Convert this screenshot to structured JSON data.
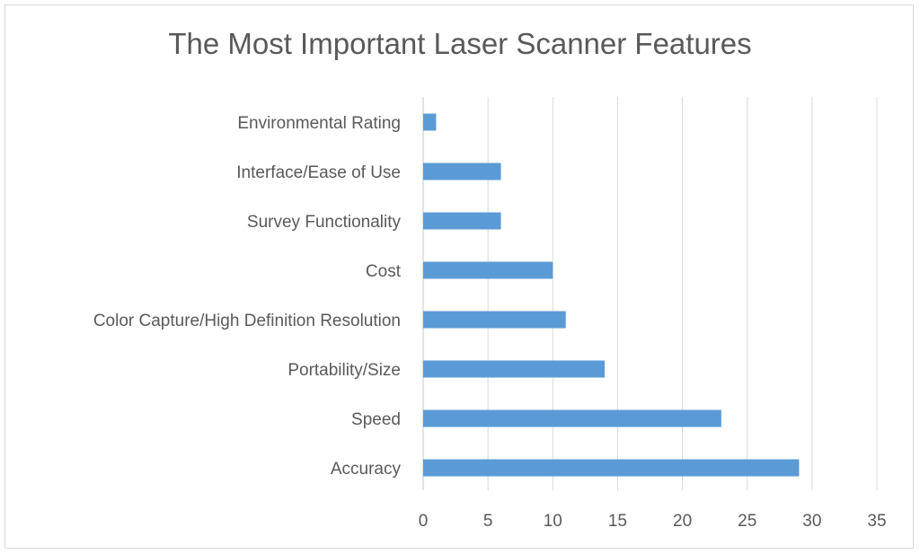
{
  "chart_data": {
    "type": "bar",
    "orientation": "horizontal",
    "title": "The Most Important Laser Scanner Features",
    "xlabel": "",
    "ylabel": "",
    "categories": [
      "Environmental Rating",
      "Interface/Ease of Use",
      "Survey Functionality",
      "Cost",
      "Color Capture/High Definition Resolution",
      "Portability/Size",
      "Speed",
      "Accuracy"
    ],
    "values": [
      1,
      6,
      6,
      10,
      11,
      14,
      23,
      29
    ],
    "xlim": [
      0,
      35
    ],
    "xticks": [
      0,
      5,
      10,
      15,
      20,
      25,
      30,
      35
    ],
    "grid": "vertical",
    "legend": "none",
    "bar_color": "#5b9bd5",
    "grid_color": "#d9d9d9",
    "text_color": "#595959"
  }
}
